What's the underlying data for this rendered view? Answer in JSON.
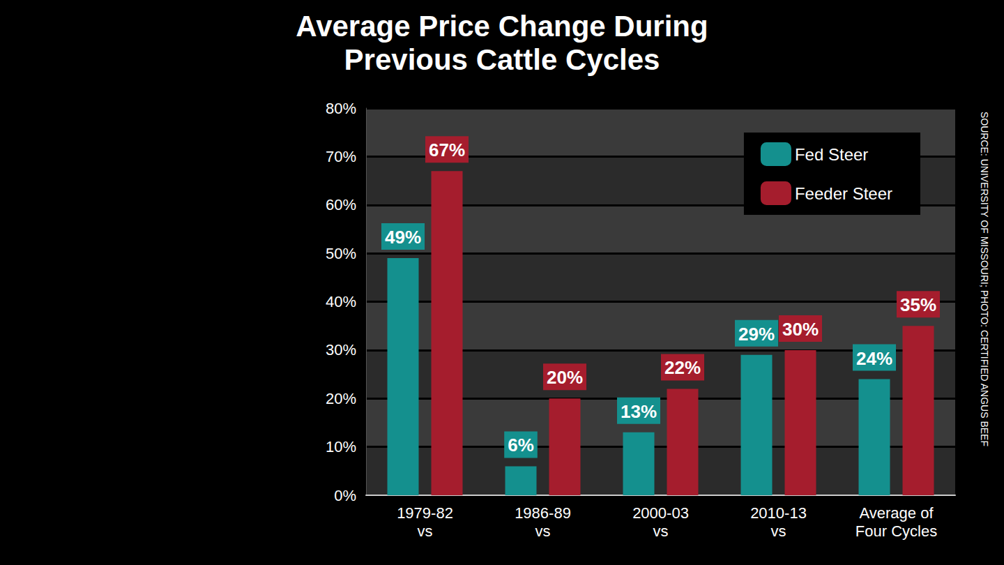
{
  "chart_data": {
    "type": "bar",
    "title": "Average Price Change During Previous Cattle Cycles",
    "source": "SOURCE: UNIVERSITY OF MISSOURI; PHOTO: CERTIFIED ANGUS BEEF",
    "categories": [
      "1979-82 vs",
      "1986-89 vs",
      "2000-03 vs",
      "2010-13 vs",
      "Average of Four Cycles"
    ],
    "series": [
      {
        "name": "Fed Steer",
        "color": "#14908e",
        "values": [
          49,
          6,
          13,
          29,
          24
        ],
        "value_labels": [
          "49%",
          "6%",
          "13%",
          "29%",
          "24%"
        ]
      },
      {
        "name": "Feeder Steer",
        "color": "#a51d2d",
        "values": [
          67,
          20,
          22,
          30,
          35
        ],
        "value_labels": [
          "67%",
          "20%",
          "22%",
          "30%",
          "35%"
        ]
      }
    ],
    "ylim": [
      0,
      80
    ],
    "yticks": [
      {
        "value": 0,
        "label": "0%"
      },
      {
        "value": 10,
        "label": "10%"
      },
      {
        "value": 20,
        "label": "20%"
      },
      {
        "value": 30,
        "label": "30%"
      },
      {
        "value": 40,
        "label": "40%"
      },
      {
        "value": 50,
        "label": "50%"
      },
      {
        "value": 60,
        "label": "60%"
      },
      {
        "value": 70,
        "label": "70%"
      },
      {
        "value": 80,
        "label": "80%"
      }
    ],
    "grid": true,
    "legend": "upper right",
    "data_labels": true
  }
}
